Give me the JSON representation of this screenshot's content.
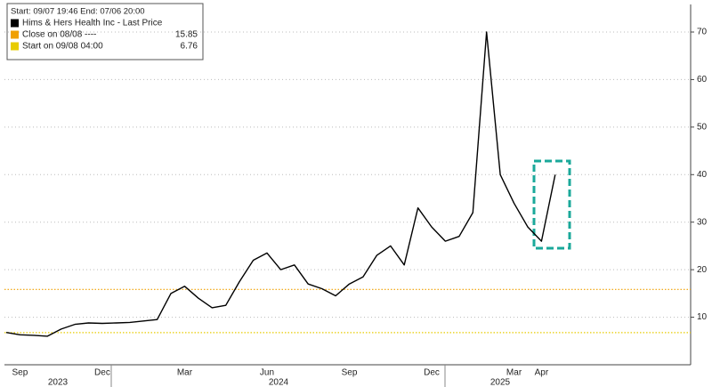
{
  "chart_data": {
    "type": "line",
    "categories": [
      null,
      "Sep",
      null,
      null,
      null,
      null,
      null,
      "Dec",
      null,
      null,
      null,
      null,
      null,
      "Mar",
      null,
      null,
      null,
      null,
      null,
      "Jun",
      null,
      null,
      null,
      null,
      null,
      "Sep",
      null,
      null,
      null,
      null,
      null,
      "Dec",
      null,
      null,
      null,
      null,
      null,
      "Mar",
      null,
      "Apr",
      null,
      null,
      null,
      null,
      null,
      null,
      null,
      null,
      null,
      null
    ],
    "years": [
      "2023",
      "2024",
      "2025"
    ],
    "series": [
      {
        "name": "Hims & Hers Health Inc - Last Price",
        "color": "#000000",
        "values": [
          6.8,
          6.3,
          6.2,
          6.0,
          7.5,
          8.5,
          8.8,
          8.7,
          8.8,
          8.9,
          9.2,
          9.5,
          15,
          16.5,
          14,
          12,
          12.5,
          17.5,
          22,
          23.5,
          20,
          21,
          17,
          16,
          14.5,
          17,
          18.5,
          23,
          25,
          21,
          33,
          29,
          26,
          27,
          32,
          70,
          40,
          34,
          29,
          26,
          40,
          null,
          null,
          null,
          null,
          null,
          null,
          null,
          null,
          null
        ]
      }
    ],
    "reference_lines": [
      {
        "name": "Close on 08/08 ----",
        "value": 15.85,
        "color": "#f0a000"
      },
      {
        "name": "Start on 09/08 04:00",
        "value": 6.76,
        "color": "#e8cc00"
      }
    ],
    "legend_header": "Start: 09/07 19:46 End: 07/06 20:00",
    "ylim": [
      0,
      75.8
    ],
    "yticks": [
      10,
      20,
      30,
      40,
      50,
      60,
      70
    ],
    "grid": true
  }
}
